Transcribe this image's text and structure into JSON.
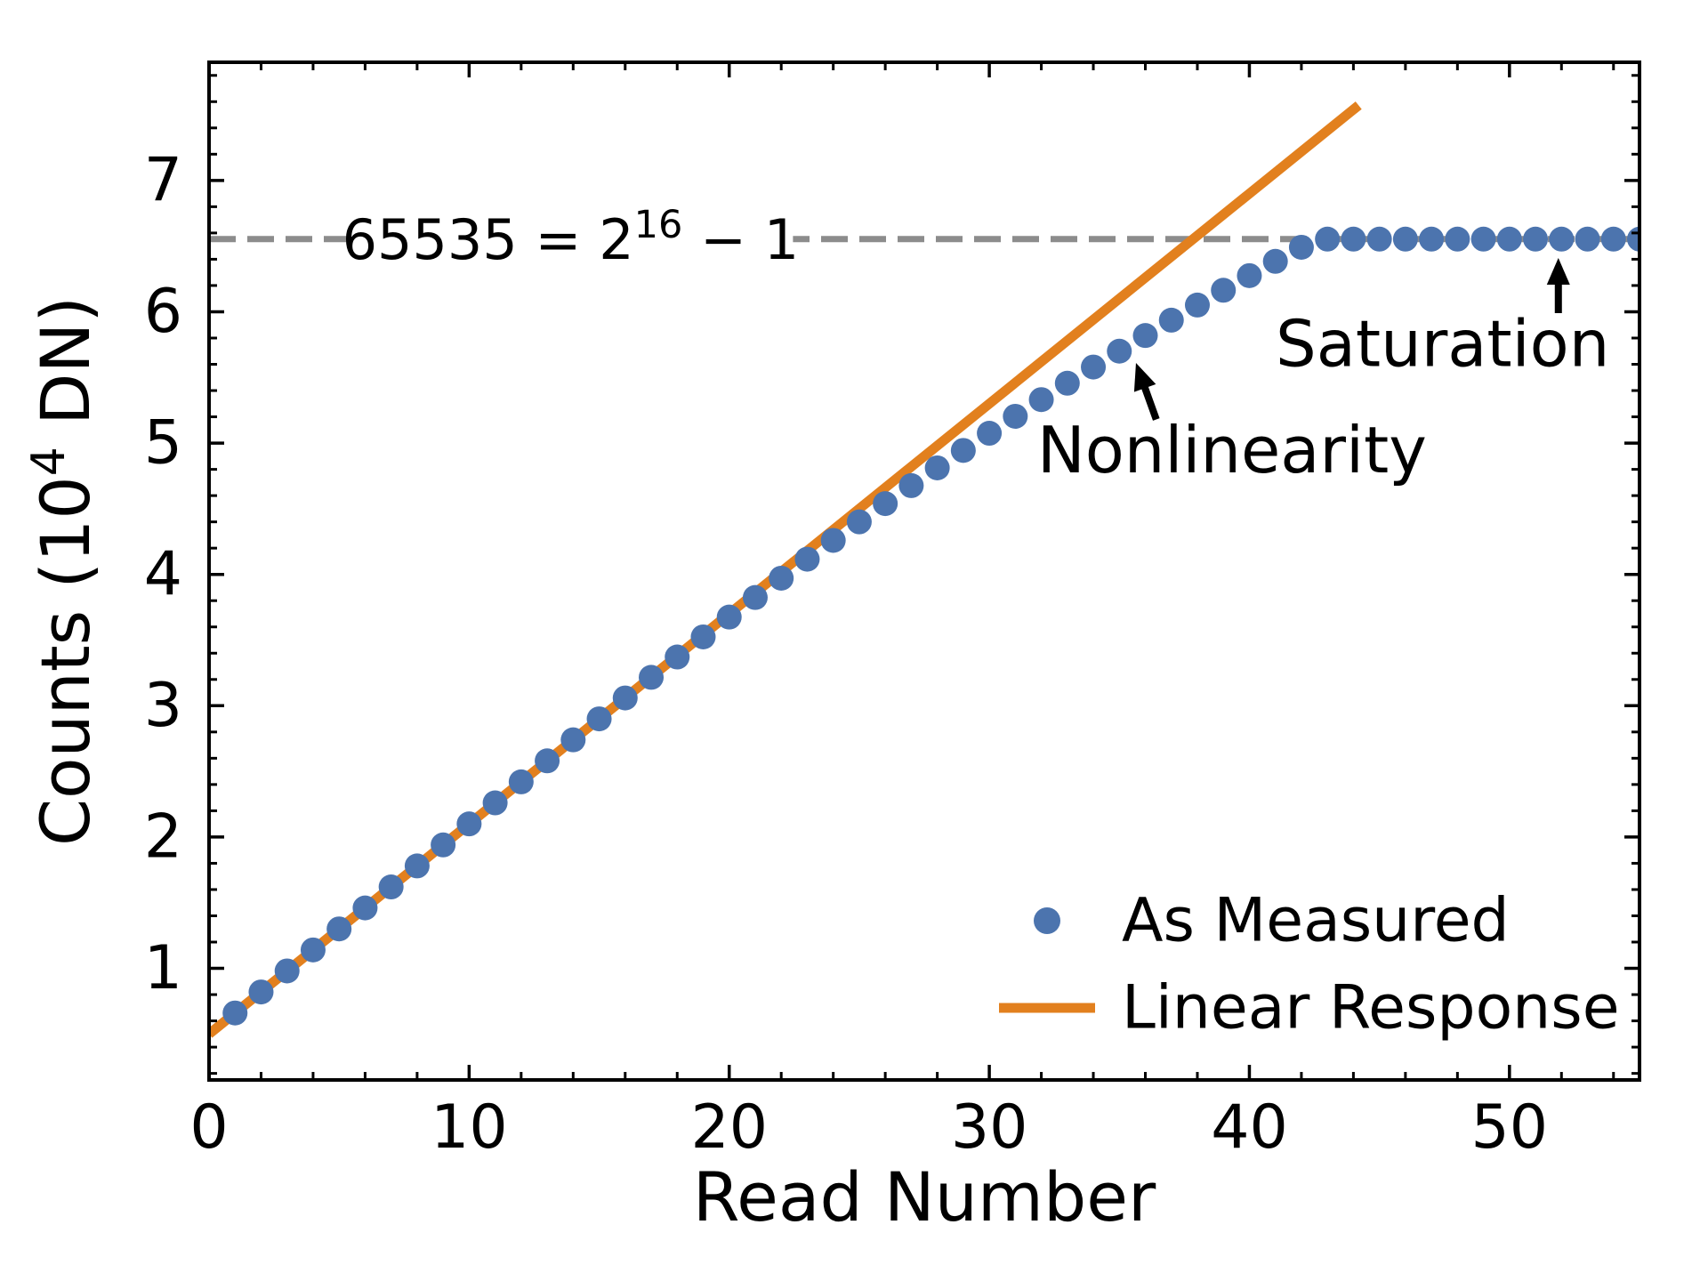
{
  "chart_data": {
    "type": "scatter",
    "title": "",
    "xlabel": "Read Number",
    "ylabel": "Counts (10^4 DN)",
    "ylabel_parts": {
      "prefix": "Counts (10",
      "sup": "4",
      "suffix": " DN)"
    },
    "xlim": [
      0,
      55
    ],
    "ylim": [
      0.15,
      7.9
    ],
    "x_major_ticks": [
      0,
      10,
      20,
      30,
      40,
      50
    ],
    "x_minor_step": 2,
    "y_major_ticks": [
      1,
      2,
      3,
      4,
      5,
      6,
      7
    ],
    "y_minor_step": 0.2,
    "grid": false,
    "series": [
      {
        "name": "As Measured",
        "type": "scatter",
        "color": "#4C74AE",
        "x_start": 1,
        "x_step": 1,
        "values": [
          0.66,
          0.82,
          0.98,
          1.14,
          1.3,
          1.46,
          1.62,
          1.78,
          1.94,
          2.1,
          2.26,
          2.42,
          2.58,
          2.74,
          2.9,
          3.059,
          3.216,
          3.371,
          3.524,
          3.675,
          3.824,
          3.971,
          4.116,
          4.259,
          4.4,
          4.539,
          4.676,
          4.811,
          4.944,
          5.075,
          5.204,
          5.331,
          5.456,
          5.579,
          5.7,
          5.819,
          5.936,
          6.051,
          6.164,
          6.275,
          6.384,
          6.491,
          6.5535,
          6.5535,
          6.5535,
          6.5535,
          6.5535,
          6.5535,
          6.5535,
          6.5535,
          6.5535,
          6.5535,
          6.5535,
          6.5535,
          6.5535
        ]
      },
      {
        "name": "Linear Response",
        "type": "line",
        "color": "#E2801E",
        "x": [
          0,
          44.2
        ],
        "y": [
          0.5,
          7.572
        ]
      }
    ],
    "threshold": {
      "value": 6.5535,
      "color": "#8C8C8C",
      "label": "65535 = 2^16 − 1",
      "label_parts": {
        "prefix": "65535 = 2",
        "sup": "16",
        "suffix": " − 1"
      },
      "label_center_x_data": 13.9
    },
    "annotations": [
      {
        "text": "Nonlinearity",
        "x": 39.33,
        "y": 4.94,
        "arrow": {
          "tail": [
            36.42,
            5.18
          ],
          "tip": [
            35.64,
            5.61
          ]
        }
      },
      {
        "text": "Saturation",
        "x": 47.43,
        "y": 5.75,
        "arrow": {
          "tail": [
            51.88,
            5.99
          ],
          "tip": [
            51.88,
            6.41
          ]
        }
      }
    ],
    "legend": {
      "position": "lower right",
      "items": [
        {
          "label": "As Measured",
          "marker": "dot",
          "color": "#4C74AE"
        },
        {
          "label": "Linear Response",
          "marker": "line",
          "color": "#E2801E"
        }
      ]
    }
  }
}
